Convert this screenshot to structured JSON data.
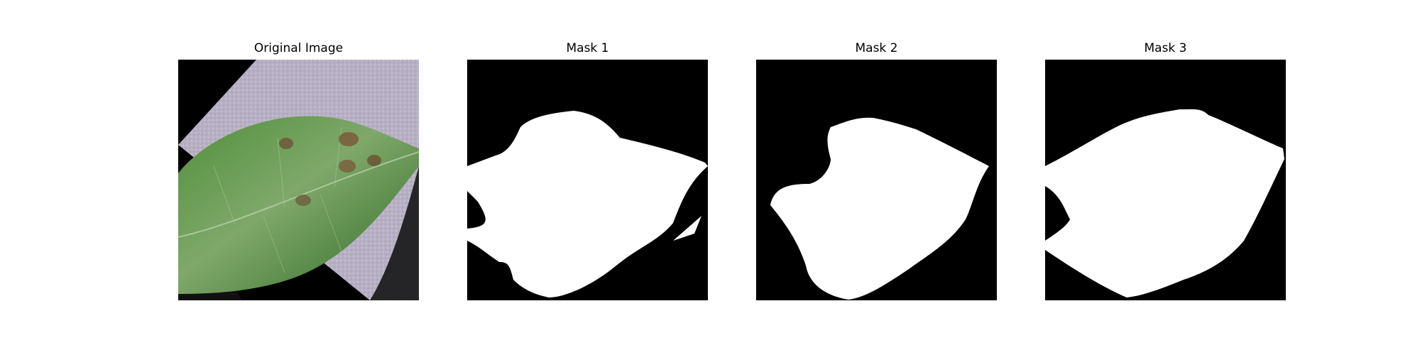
{
  "panels": [
    {
      "id": "original",
      "title": "Original Image",
      "kind": "photo"
    },
    {
      "id": "mask1",
      "title": "Mask 1",
      "kind": "mask"
    },
    {
      "id": "mask2",
      "title": "Mask 2",
      "kind": "mask"
    },
    {
      "id": "mask3",
      "title": "Mask 3",
      "kind": "mask"
    }
  ],
  "colors": {
    "mask_background": "#000000",
    "mask_foreground": "#ffffff",
    "page_background": "#ffffff",
    "leaf_green": "#3f7a2f",
    "leaf_highlight": "#8fb27a",
    "lesion_brown": "#7a5a3a",
    "table_surface": "#b9b3c6"
  }
}
